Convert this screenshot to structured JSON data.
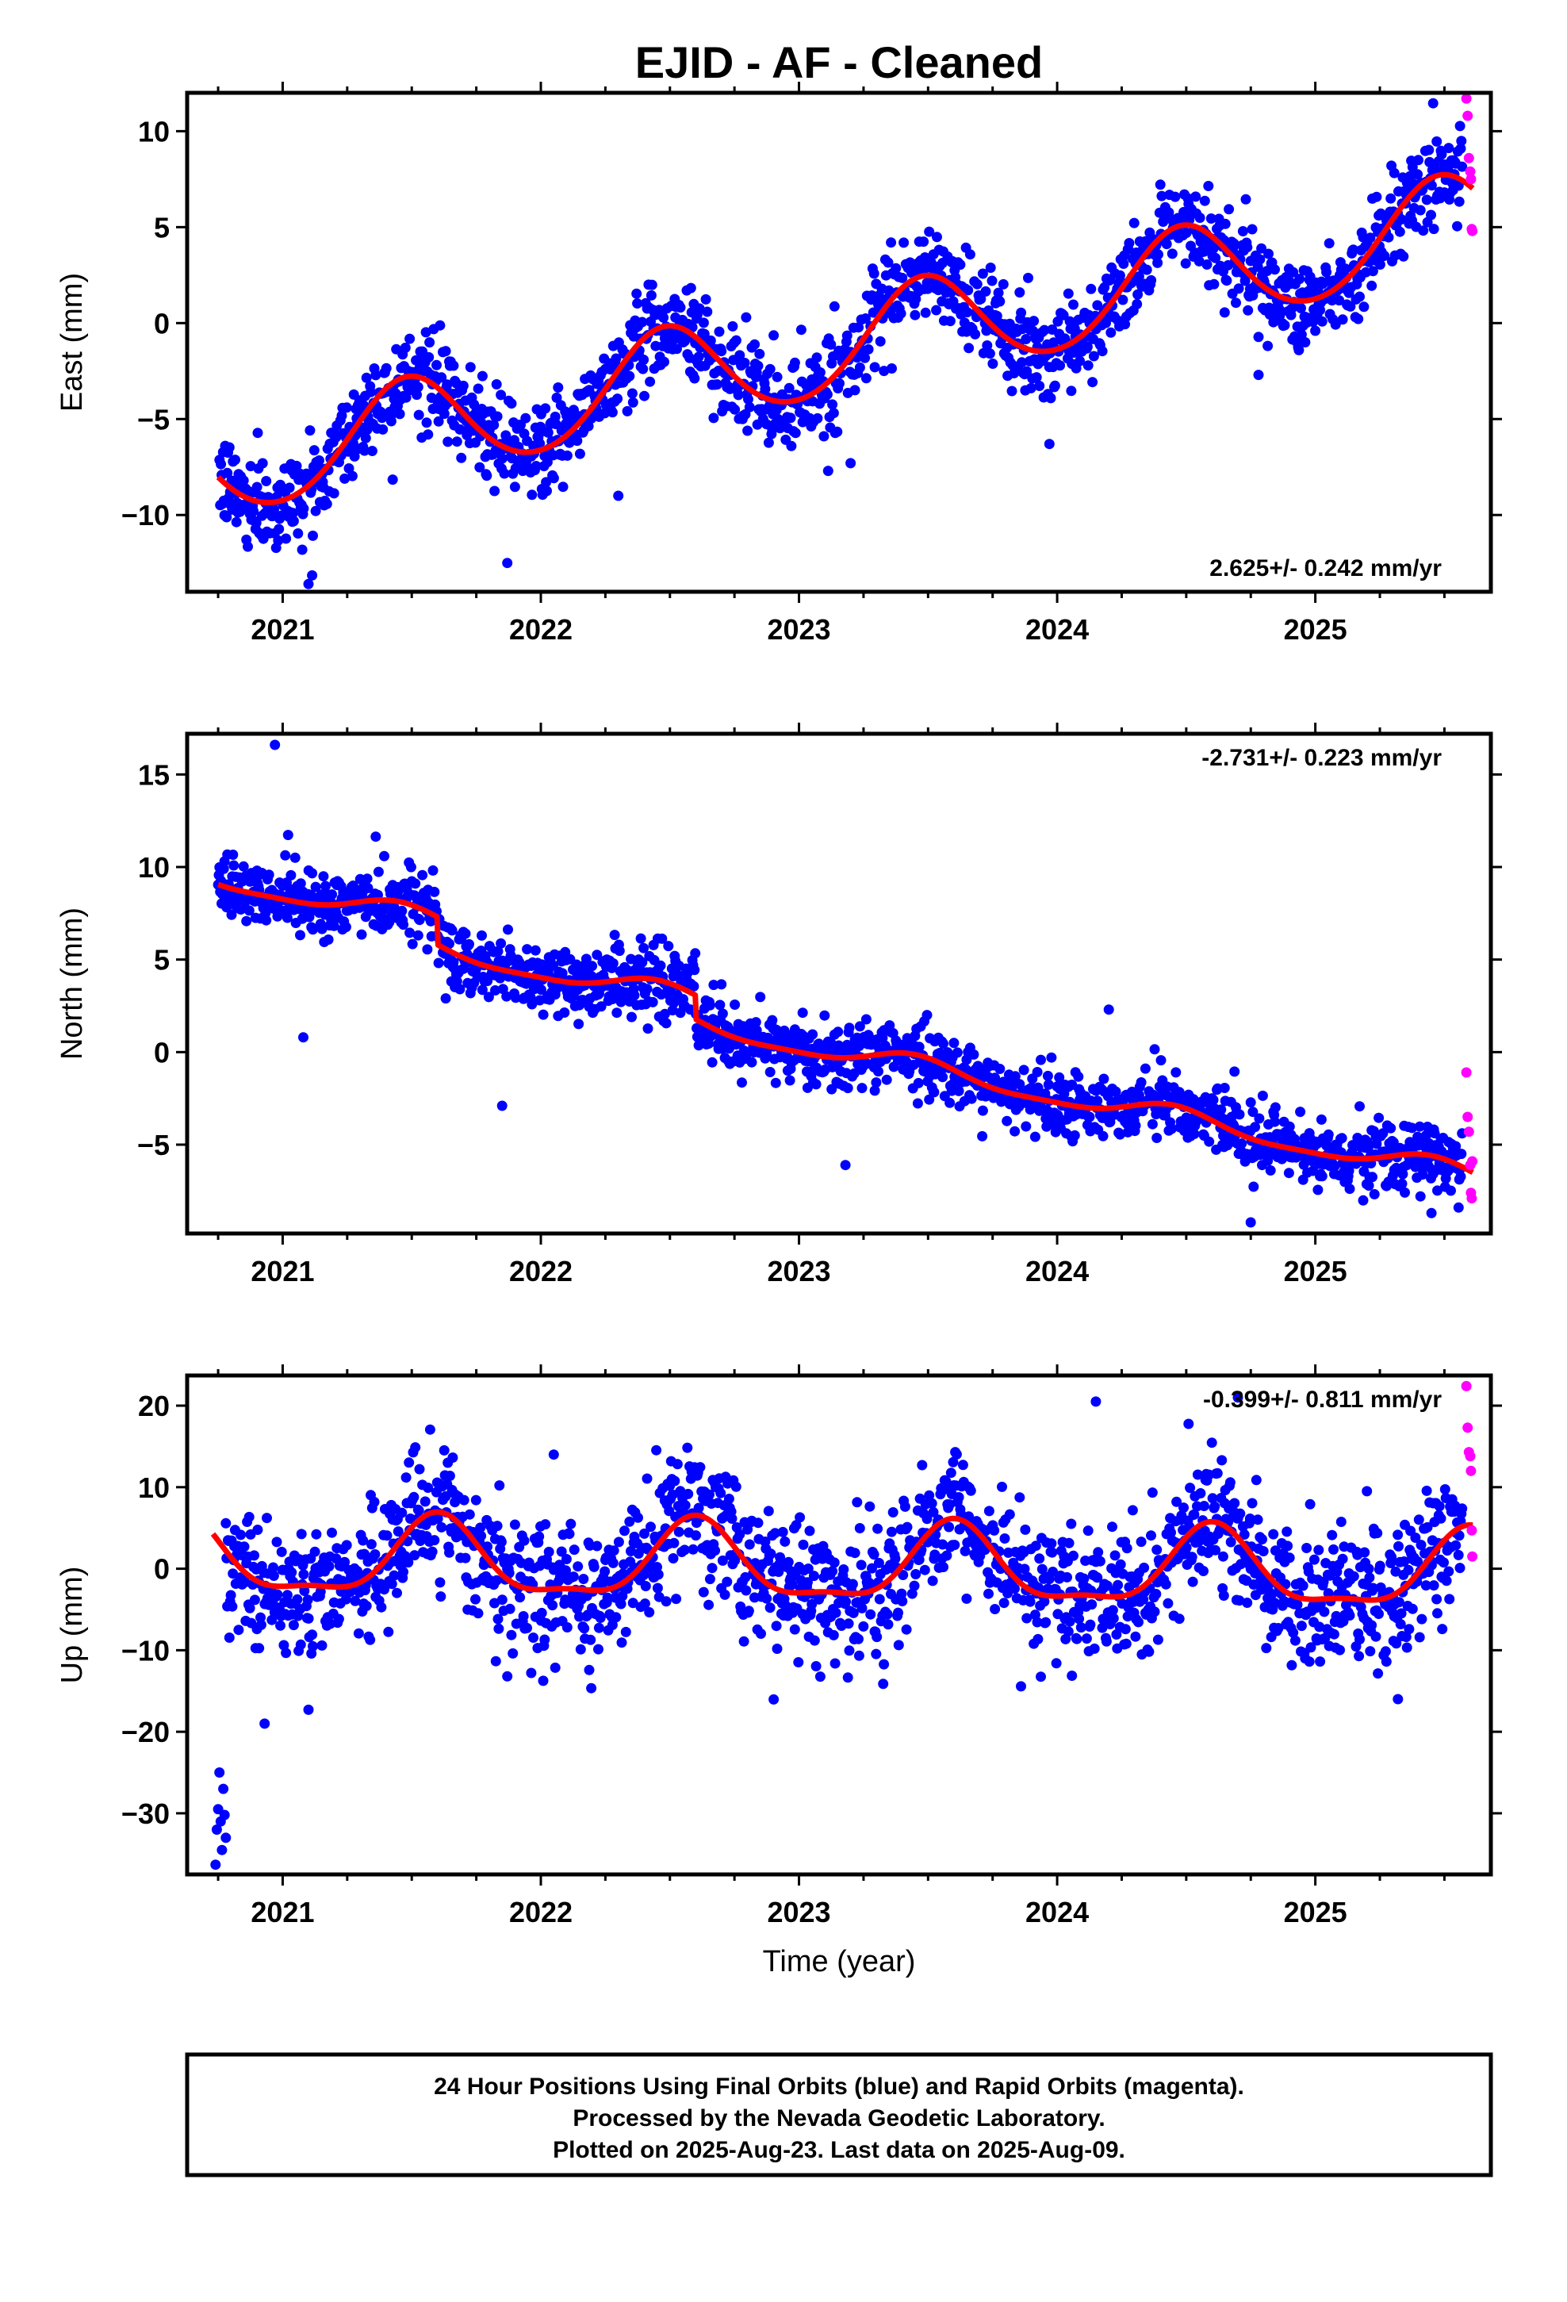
{
  "figure": {
    "title": "EJID  - AF - Cleaned",
    "xlabel": "Time (year)",
    "footer": [
      "24 Hour Positions Using Final Orbits (blue) and Rapid Orbits (magenta).",
      "Processed by the Nevada Geodetic Laboratory.",
      "Plotted on 2025-Aug-23. Last data on 2025-Aug-09."
    ]
  },
  "colors": {
    "final_orbits": "#0000ff",
    "rapid_orbits": "#ff00ff",
    "model_fit": "#ff0000",
    "frame": "#000000"
  },
  "chart_data": [
    {
      "type": "scatter",
      "ylabel": "East (mm)",
      "rate_text": "2.625+/- 0.242 mm/yr",
      "rate_position": "bottom-right",
      "xlim": [
        2020.63,
        2025.68
      ],
      "ylim": [
        -14,
        12
      ],
      "xticks": [
        2021,
        2022,
        2023,
        2024,
        2025
      ],
      "xtick_labels": [
        "2021",
        "2022",
        "2023",
        "2024",
        "2025"
      ],
      "yticks": [
        -10,
        -5,
        0,
        5,
        10
      ],
      "ytick_labels": [
        "−10",
        "−5",
        "0",
        "5",
        "10"
      ],
      "grid": false,
      "model": {
        "rate": 2.625,
        "value_at_2023": -1.6,
        "annual_amplitude": 2.6,
        "annual_phase_peak": 0.48,
        "semiannual_amplitude": 0.2
      },
      "start": 2020.75,
      "end_final": 2025.57,
      "noise_sd": 1.2,
      "outliers": [
        [
          2021.1,
          -13.6
        ],
        [
          2021.87,
          -12.5
        ],
        [
          2023.2,
          -7.3
        ],
        [
          2023.97,
          -6.3
        ],
        [
          2022.3,
          -9.0
        ],
        [
          2024.78,
          -2.7
        ],
        [
          2025.0,
          -0.4
        ]
      ],
      "rapid_orbits": [
        [
          2025.585,
          11.7
        ],
        [
          2025.59,
          10.8
        ],
        [
          2025.595,
          8.6
        ],
        [
          2025.6,
          7.9
        ],
        [
          2025.603,
          7.5
        ],
        [
          2025.606,
          4.9
        ],
        [
          2025.608,
          4.8
        ]
      ],
      "series": [
        {
          "name": "Final Orbits (blue)"
        },
        {
          "name": "Rapid Orbits (magenta)"
        }
      ]
    },
    {
      "type": "scatter",
      "ylabel": "North (mm)",
      "rate_text": "-2.731+/- 0.223 mm/yr",
      "rate_position": "top-right",
      "xlim": [
        2020.63,
        2025.68
      ],
      "ylim": [
        -9.8,
        17.2
      ],
      "xticks": [
        2021,
        2022,
        2023,
        2024,
        2025
      ],
      "xtick_labels": [
        "2021",
        "2022",
        "2023",
        "2024",
        "2025"
      ],
      "yticks": [
        -5,
        0,
        5,
        10,
        15
      ],
      "ytick_labels": [
        "−5",
        "0",
        "5",
        "10",
        "15"
      ],
      "grid": false,
      "model": {
        "rate": -2.731,
        "value_at_2023": 0.4,
        "annual_amplitude": 0.55,
        "annual_phase_peak": 0.45,
        "semiannual_amplitude": 0.15
      },
      "steps": [
        [
          2021.6,
          -1.5
        ],
        [
          2022.6,
          -1.3
        ]
      ],
      "start": 2020.75,
      "end_final": 2025.57,
      "noise_sd": 0.9,
      "outliers": [
        [
          2020.97,
          16.6
        ],
        [
          2021.08,
          0.8
        ],
        [
          2021.85,
          -2.9
        ],
        [
          2023.18,
          -6.1
        ],
        [
          2024.2,
          2.3
        ],
        [
          2024.75,
          -9.2
        ],
        [
          2025.45,
          -8.7
        ]
      ],
      "rapid_orbits": [
        [
          2025.585,
          -1.1
        ],
        [
          2025.59,
          -3.5
        ],
        [
          2025.595,
          -4.3
        ],
        [
          2025.6,
          -6.1
        ],
        [
          2025.603,
          -7.6
        ],
        [
          2025.606,
          -7.9
        ],
        [
          2025.608,
          -5.9
        ]
      ],
      "series": [
        {
          "name": "Final Orbits (blue)"
        },
        {
          "name": "Rapid Orbits (magenta)"
        }
      ]
    },
    {
      "type": "scatter",
      "ylabel": "Up (mm)",
      "rate_text": "-0.399+/- 0.811 mm/yr",
      "rate_position": "top-right",
      "xlim": [
        2020.63,
        2025.68
      ],
      "ylim": [
        -37.5,
        23.7
      ],
      "xticks": [
        2021,
        2022,
        2023,
        2024,
        2025
      ],
      "xtick_labels": [
        "2021",
        "2022",
        "2023",
        "2024",
        "2025"
      ],
      "yticks": [
        -30,
        -20,
        -10,
        0,
        10,
        20
      ],
      "ytick_labels": [
        "−30",
        "−20",
        "−10",
        "0",
        "10",
        "20"
      ],
      "grid": false,
      "model": {
        "rate": -0.399,
        "value_at_2023": 0.3,
        "annual_amplitude": 4.6,
        "annual_phase_peak": 0.6,
        "semiannual_amplitude": 1.5
      },
      "start": 2020.78,
      "end_final": 2025.57,
      "noise_sd": 4.0,
      "early_cluster": [
        [
          2020.74,
          -36.3
        ],
        [
          2020.745,
          -32.0
        ],
        [
          2020.75,
          -29.5
        ],
        [
          2020.755,
          -25.0
        ],
        [
          2020.76,
          -31.0
        ],
        [
          2020.765,
          -34.5
        ],
        [
          2020.77,
          -27.0
        ],
        [
          2020.775,
          -30.2
        ],
        [
          2020.78,
          -33.0
        ]
      ],
      "outliers": [
        [
          2020.93,
          -19.0
        ],
        [
          2021.1,
          -17.3
        ],
        [
          2021.87,
          -13.2
        ],
        [
          2024.15,
          20.5
        ],
        [
          2024.7,
          21.0
        ],
        [
          2025.32,
          -16.0
        ],
        [
          2022.05,
          14.0
        ],
        [
          2025.2,
          9.5
        ]
      ],
      "rapid_orbits": [
        [
          2025.585,
          22.4
        ],
        [
          2025.59,
          17.3
        ],
        [
          2025.595,
          14.3
        ],
        [
          2025.6,
          13.8
        ],
        [
          2025.603,
          12.0
        ],
        [
          2025.606,
          4.7
        ],
        [
          2025.608,
          1.5
        ]
      ],
      "series": [
        {
          "name": "Final Orbits (blue)"
        },
        {
          "name": "Rapid Orbits (magenta)"
        }
      ]
    }
  ]
}
